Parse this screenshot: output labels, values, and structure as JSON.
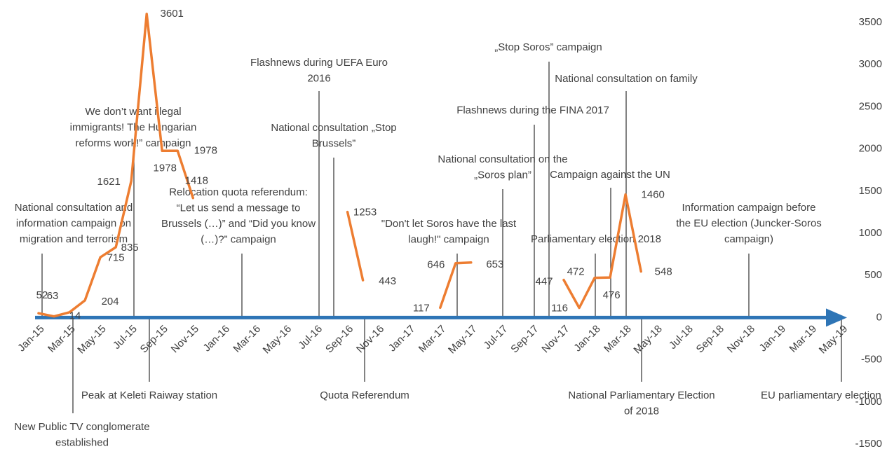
{
  "chart_data": {
    "type": "line",
    "categories": [
      "Jan-15",
      null,
      "Mar-15",
      null,
      "May-15",
      null,
      "Jul-15",
      null,
      "Sep-15",
      null,
      "Nov-15",
      null,
      "Jan-16",
      null,
      "Mar-16",
      null,
      "May-16",
      null,
      "Jul-16",
      null,
      "Sep-16",
      null,
      "Nov-16",
      null,
      "Jan-17",
      null,
      "Mar-17",
      null,
      "May-17",
      null,
      "Jul-17",
      null,
      "Sep-17",
      null,
      "Nov-17",
      null,
      "Jan-18",
      null,
      "Mar-18",
      null,
      "May-18",
      null,
      "Jul-18",
      null,
      "Sep-18",
      null,
      "Nov-18",
      null,
      "Jan-19",
      null,
      "Mar-19",
      null,
      "May-19"
    ],
    "series": [
      {
        "color": "#ed7d31",
        "values": [
          52,
          14,
          63,
          204,
          715,
          835,
          1621,
          3601,
          1978,
          1978,
          1418,
          null,
          null,
          null,
          null,
          null,
          null,
          null,
          null,
          null,
          1253,
          443,
          null,
          null,
          null,
          null,
          117,
          646,
          653,
          null,
          null,
          null,
          null,
          null,
          447,
          116,
          472,
          476,
          1460,
          548,
          null,
          null,
          null,
          null,
          null,
          null,
          null,
          null,
          null,
          null,
          null,
          null,
          null
        ]
      }
    ],
    "ylim": [
      -1500,
      3700
    ],
    "yticks": [
      -1500,
      -1000,
      -500,
      0,
      500,
      1000,
      1500,
      2000,
      2500,
      3000,
      3500
    ],
    "axis_color": "#2e75b6",
    "annotations": [
      [
        "National consultation and",
        "information campaign on",
        "migration and terrorism"
      ],
      [
        "New Public TV conglomerate",
        "established"
      ],
      [
        "Peak at Keleti Raiway station"
      ],
      [
        "We don’t want illegal",
        "immigrants! The Hungarian",
        "reforms work!” campaign"
      ],
      [
        "Relocation quota referendum:",
        "“Let us send a message to",
        "Brussels (…)” and “Did you know",
        "(…)?” campaign"
      ],
      [
        "Flashnews during UEFA Euro",
        "2016"
      ],
      [
        "National consultation „Stop",
        "Brussels”"
      ],
      [
        "Quota Referendum"
      ],
      [
        "\"Don't let Soros have the last",
        "laugh!\" campaign"
      ],
      [
        "National consultation on the",
        "„Soros plan”"
      ],
      [
        "Flashnews during the FINA 2017"
      ],
      [
        "„Stop Soros” campaign"
      ],
      [
        "National consultation on family"
      ],
      [
        "Campaign against the UN"
      ],
      [
        "Parliamentary election 2018"
      ],
      [
        "National Parliamentary Election",
        "of 2018"
      ],
      [
        "Information campaign before",
        "the EU election (Juncker-Soros",
        "campaign)"
      ],
      [
        "EU parliamentary election"
      ]
    ]
  }
}
